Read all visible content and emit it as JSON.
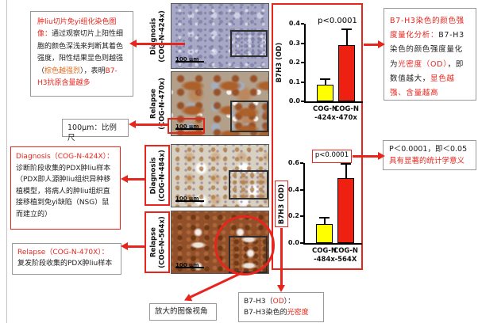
{
  "figure": {
    "colors": {
      "accent_red": "#e8251d",
      "brown_text": "#e06a1e",
      "bar_yellow": "#ffff00",
      "bar_red": "#ee2012",
      "stain_brown": "#a05a2c",
      "tissue_blue": "#a7a8c6"
    },
    "notes": {
      "ihc": {
        "segments": [
          {
            "t": "肿liu切片免yi组化染色图像：",
            "c": "#e8251d"
          },
          {
            "t": "通过观察切片上阳性细胞的颜色深浅来判断其着色强度，阳性结果显色则越强（"
          },
          {
            "t": "棕色越强烈",
            "c": "#e06a1e"
          },
          {
            "t": "），表明"
          },
          {
            "t": "B7-H3抗原含量越多",
            "c": "#e8251d"
          }
        ]
      },
      "scale": {
        "segments": [
          {
            "t": "100μm：比例尺"
          }
        ]
      },
      "diagnosis": {
        "segments": [
          {
            "t": "Diagnosis（COG-N-424X）：\n",
            "c": "#e8251d"
          },
          {
            "t": "诊断阶段收集的PDX肿liu样本（PDX即人源肿liu组织异种移植模型，将病人的肿liu组织直接移植到免yi缺陷（NSG）鼠而建立的）"
          }
        ]
      },
      "relapse": {
        "segments": [
          {
            "t": "Relapse（COG-N-470X）：\n",
            "c": "#e8251d"
          },
          {
            "t": "复发阶段收集的PDX肿liu样本"
          }
        ]
      },
      "magnified": {
        "segments": [
          {
            "t": "放大的图像视角"
          }
        ]
      },
      "od": {
        "segments": [
          {
            "t": "B7-H3（"
          },
          {
            "t": "OD",
            "c": "#e8251d"
          },
          {
            "t": "）：\nB7-H3染色的"
          },
          {
            "t": "光密度",
            "c": "#e8251d"
          }
        ]
      },
      "quant": {
        "segments": [
          {
            "t": "B7-H3染色的颜色强度量化分析：",
            "c": "#e8251d"
          },
          {
            "t": "B7-H3染色的颜色强度量化为"
          },
          {
            "t": "光密度（OD）",
            "c": "#e8251d"
          },
          {
            "t": "，即数值越大，"
          },
          {
            "t": "显色越强、含量越高",
            "c": "#e8251d"
          }
        ]
      },
      "pvalue": {
        "segments": [
          {
            "t": "P＜0.0001，即＜0.05\n"
          },
          {
            "t": "具有显著的统计学意义",
            "c": "#e8251d"
          }
        ]
      }
    },
    "micrographs": [
      {
        "label": [
          "Diagnosis",
          "(COG-N-424x)"
        ],
        "scale_bar": "100 μm"
      },
      {
        "label": [
          "Relapse",
          "(COG-N-470x)"
        ],
        "scale_bar": "100 μm"
      },
      {
        "label": [
          "Diagnosis",
          "(COG-N-484x)"
        ],
        "scale_bar": "100 μm"
      },
      {
        "label": [
          "Relapse",
          "(COG-N-564x)"
        ],
        "scale_bar": "100 μm"
      }
    ]
  },
  "chart_data": [
    {
      "type": "bar",
      "categories": [
        [
          "COG-N",
          "-424x"
        ],
        [
          "COG-N",
          "-470x"
        ]
      ],
      "values": [
        0.087,
        0.29
      ],
      "errors": [
        0.033,
        0.085
      ],
      "bar_colors": [
        "#ffff00",
        "#ee2012"
      ],
      "ylabel": "B7H3 (OD)",
      "ylim": [
        0,
        0.4
      ],
      "yticks": [
        "0.0",
        "0.1",
        "0.2",
        "0.3",
        "0.4"
      ],
      "annotation": "p<0.0001",
      "annotation_boxed": false,
      "legend": null,
      "grid": false
    },
    {
      "type": "bar",
      "categories": [
        [
          "COG-N",
          "-484x"
        ],
        [
          "COG-N",
          "-564X"
        ]
      ],
      "values": [
        0.145,
        0.49
      ],
      "errors": [
        0.05,
        0.11
      ],
      "bar_colors": [
        "#ffff00",
        "#ee2012"
      ],
      "ylabel": "B7H3 (OD)",
      "ylim": [
        0,
        0.6
      ],
      "yticks": [
        "0.0",
        "0.2",
        "0.4",
        "0.6"
      ],
      "annotation": "p<0.0001",
      "annotation_boxed": true,
      "legend": null,
      "grid": false
    }
  ]
}
